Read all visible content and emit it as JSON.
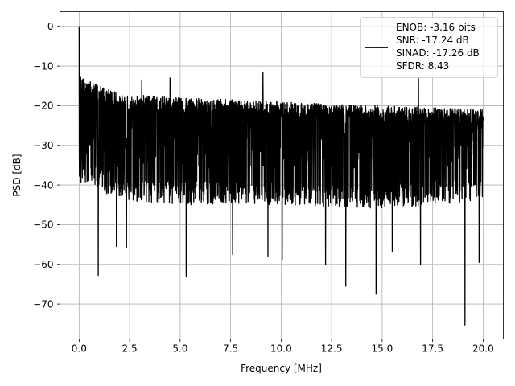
{
  "chart_data": {
    "type": "line",
    "xlabel": "Frequency [MHz]",
    "ylabel": "PSD [dB]",
    "xlim": [
      -0.95,
      21.0
    ],
    "ylim": [
      -78.8,
      3.7
    ],
    "xticks": [
      0.0,
      2.5,
      5.0,
      7.5,
      10.0,
      12.5,
      15.0,
      17.5,
      20.0
    ],
    "xtick_labels": [
      "0.0",
      "2.5",
      "5.0",
      "7.5",
      "10.0",
      "12.5",
      "15.0",
      "17.5",
      "20.0"
    ],
    "yticks": [
      0,
      -10,
      -20,
      -30,
      -40,
      -50,
      -60,
      -70
    ],
    "ytick_labels": [
      "0",
      "−10",
      "−20",
      "−30",
      "−40",
      "−50",
      "−60",
      "−70"
    ],
    "grid": true,
    "legend_placement": "upper right",
    "series": [
      {
        "name": "ENOB: -3.16 bits\nSNR: -17.24 dB\nSINAD: -17.26 dB\nSFDR: 8.43",
        "legend_lines": [
          "ENOB: -3.16 bits",
          "SNR: -17.24 dB",
          "SINAD: -17.26 dB",
          "SFDR: 8.43"
        ],
        "color": "#000000",
        "x_range": [
          0.0,
          20.0
        ],
        "dc_peak": {
          "x": 0.0,
          "y": 0.0
        },
        "noise_floor_mean": -30.0,
        "noise_upper_envelope": [
          [
            0.0,
            -12
          ],
          [
            0.5,
            -14
          ],
          [
            2.0,
            -17
          ],
          [
            5.0,
            -18
          ],
          [
            10.0,
            -19
          ],
          [
            15.0,
            -20
          ],
          [
            20.0,
            -21
          ]
        ],
        "noise_lower_envelope": [
          [
            0.0,
            -40
          ],
          [
            2.5,
            -44
          ],
          [
            5.0,
            -45
          ],
          [
            10.0,
            -45
          ],
          [
            15.0,
            -46
          ],
          [
            20.0,
            -44
          ]
        ],
        "notable_peaks": [
          {
            "x": 0.55,
            "y": -14
          },
          {
            "x": 3.1,
            "y": -13.5
          },
          {
            "x": 4.5,
            "y": -13
          },
          {
            "x": 9.1,
            "y": -11.5
          },
          {
            "x": 16.8,
            "y": -13
          }
        ],
        "notable_dips": [
          {
            "x": 0.95,
            "y": -62.8
          },
          {
            "x": 1.85,
            "y": -55.5
          },
          {
            "x": 2.35,
            "y": -55.7
          },
          {
            "x": 5.3,
            "y": -63.2
          },
          {
            "x": 7.6,
            "y": -57.5
          },
          {
            "x": 9.35,
            "y": -58.0
          },
          {
            "x": 10.05,
            "y": -58.8
          },
          {
            "x": 12.2,
            "y": -60.0
          },
          {
            "x": 13.2,
            "y": -65.5
          },
          {
            "x": 14.7,
            "y": -67.5
          },
          {
            "x": 15.5,
            "y": -56.7
          },
          {
            "x": 16.9,
            "y": -60.0
          },
          {
            "x": 19.1,
            "y": -75.3
          },
          {
            "x": 19.8,
            "y": -59.5
          }
        ]
      }
    ]
  }
}
